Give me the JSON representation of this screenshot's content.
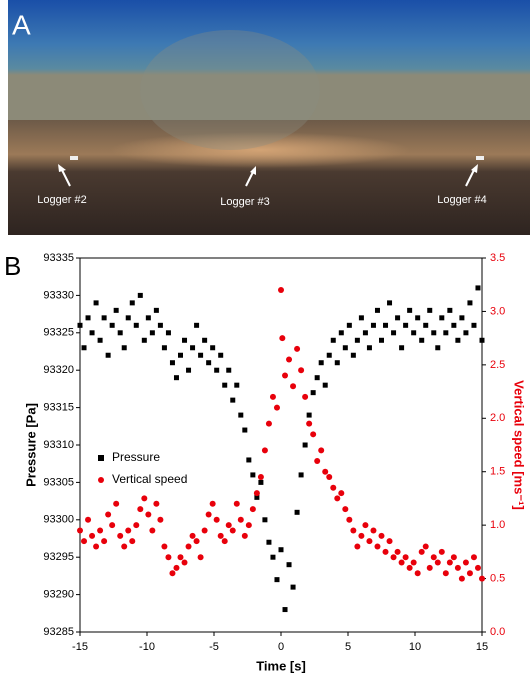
{
  "panel_labels": [
    "A",
    "B"
  ],
  "photo": {
    "labels": [
      "Logger #2",
      "Logger #3",
      "Logger #4"
    ]
  },
  "chart_data": {
    "type": "scatter",
    "xlabel": "Time [s]",
    "ylabel": "Pressure [Pa]",
    "y2label": "Vertical speed [ms⁻¹]",
    "xlim": [
      -15,
      15
    ],
    "xticks": [
      -15,
      -10,
      -5,
      0,
      5,
      10,
      15
    ],
    "ylim": [
      93285,
      93335
    ],
    "yticks": [
      93285,
      93290,
      93295,
      93300,
      93305,
      93310,
      93315,
      93320,
      93325,
      93330,
      93335
    ],
    "y2lim": [
      0,
      3.5
    ],
    "y2ticks": [
      {
        "value": 0,
        "label": "0.0"
      },
      0.5,
      {
        "value": 1,
        "label": "1.0"
      },
      1.5,
      {
        "value": 2,
        "label": "2.0"
      },
      2.5,
      {
        "value": 3,
        "label": "3.0"
      },
      3.5
    ],
    "legend": "center left",
    "grid": false,
    "series": [
      {
        "name": "Pressure",
        "color": "#000000",
        "marker": "square",
        "x": [
          -15,
          -14.7,
          -14.4,
          -14.1,
          -13.8,
          -13.5,
          -13.2,
          -12.9,
          -12.6,
          -12.3,
          -12,
          -11.7,
          -11.4,
          -11.1,
          -10.8,
          -10.5,
          -10.2,
          -9.9,
          -9.6,
          -9.3,
          -9,
          -8.7,
          -8.4,
          -8.1,
          -7.8,
          -7.5,
          -7.2,
          -6.9,
          -6.6,
          -6.3,
          -6,
          -5.7,
          -5.4,
          -5.1,
          -4.8,
          -4.5,
          -4.2,
          -3.9,
          -3.6,
          -3.3,
          -3,
          -2.7,
          -2.4,
          -2.1,
          -1.8,
          -1.5,
          -1.2,
          -0.9,
          -0.6,
          -0.3,
          0,
          0.3,
          0.6,
          0.9,
          1.2,
          1.5,
          1.8,
          2.1,
          2.4,
          2.7,
          3,
          3.3,
          3.6,
          3.9,
          4.2,
          4.5,
          4.8,
          5.1,
          5.4,
          5.7,
          6,
          6.3,
          6.6,
          6.9,
          7.2,
          7.5,
          7.8,
          8.1,
          8.4,
          8.7,
          9,
          9.3,
          9.6,
          9.9,
          10.2,
          10.5,
          10.8,
          11.1,
          11.4,
          11.7,
          12,
          12.3,
          12.6,
          12.9,
          13.2,
          13.5,
          13.8,
          14.1,
          14.4,
          14.7,
          15
        ],
        "values": [
          93326,
          93323,
          93327,
          93325,
          93329,
          93324,
          93327,
          93322,
          93326,
          93328,
          93325,
          93323,
          93327,
          93329,
          93326,
          93330,
          93324,
          93327,
          93325,
          93328,
          93326,
          93323,
          93325,
          93321,
          93319,
          93322,
          93324,
          93320,
          93323,
          93326,
          93322,
          93324,
          93321,
          93323,
          93320,
          93322,
          93318,
          93320,
          93316,
          93318,
          93314,
          93312,
          93308,
          93306,
          93303,
          93305,
          93300,
          93297,
          93295,
          93292,
          93296,
          93288,
          93294,
          93291,
          93301,
          93306,
          93310,
          93314,
          93317,
          93319,
          93321,
          93318,
          93322,
          93324,
          93321,
          93325,
          93323,
          93326,
          93322,
          93324,
          93327,
          93325,
          93323,
          93326,
          93328,
          93324,
          93326,
          93329,
          93325,
          93327,
          93323,
          93326,
          93328,
          93325,
          93327,
          93324,
          93326,
          93328,
          93325,
          93323,
          93327,
          93325,
          93328,
          93326,
          93324,
          93327,
          93325,
          93329,
          93326,
          93331,
          93324
        ]
      },
      {
        "name": "Vertical speed",
        "color": "#e8000b",
        "marker": "circle",
        "axis": "y2",
        "x": [
          -15,
          -14.7,
          -14.4,
          -14.1,
          -13.8,
          -13.5,
          -13.2,
          -12.9,
          -12.6,
          -12.3,
          -12,
          -11.7,
          -11.4,
          -11.1,
          -10.8,
          -10.5,
          -10.2,
          -9.9,
          -9.6,
          -9.3,
          -9,
          -8.7,
          -8.4,
          -8.1,
          -7.8,
          -7.5,
          -7.2,
          -6.9,
          -6.6,
          -6.3,
          -6,
          -5.7,
          -5.4,
          -5.1,
          -4.8,
          -4.5,
          -4.2,
          -3.9,
          -3.6,
          -3.3,
          -3,
          -2.7,
          -2.4,
          -2.1,
          -1.8,
          -1.5,
          -1.2,
          -0.9,
          -0.6,
          -0.3,
          0,
          0.1,
          0.3,
          0.6,
          0.9,
          1.2,
          1.5,
          1.8,
          2.1,
          2.4,
          2.7,
          3,
          3.3,
          3.6,
          3.9,
          4.2,
          4.5,
          4.8,
          5.1,
          5.4,
          5.7,
          6,
          6.3,
          6.6,
          6.9,
          7.2,
          7.5,
          7.8,
          8.1,
          8.4,
          8.7,
          9,
          9.3,
          9.6,
          9.9,
          10.2,
          10.5,
          10.8,
          11.1,
          11.4,
          11.7,
          12,
          12.3,
          12.6,
          12.9,
          13.2,
          13.5,
          13.8,
          14.1,
          14.4,
          14.7,
          15
        ],
        "values": [
          0.95,
          0.85,
          1.05,
          0.9,
          0.8,
          0.95,
          0.85,
          1.1,
          1,
          1.2,
          0.9,
          0.8,
          0.95,
          0.85,
          1,
          1.15,
          1.25,
          1.1,
          0.95,
          1.2,
          1.05,
          0.8,
          0.7,
          0.55,
          0.6,
          0.7,
          0.65,
          0.8,
          0.9,
          0.85,
          0.7,
          0.95,
          1.1,
          1.2,
          1.05,
          0.9,
          0.85,
          1,
          0.95,
          1.2,
          1.05,
          0.9,
          1,
          1.15,
          1.3,
          1.45,
          1.7,
          1.95,
          2.2,
          2.1,
          3.2,
          2.75,
          2.4,
          2.55,
          2.3,
          2.65,
          2.45,
          2.2,
          1.95,
          1.85,
          1.6,
          1.7,
          1.5,
          1.45,
          1.35,
          1.25,
          1.3,
          1.15,
          1.05,
          0.95,
          0.8,
          0.9,
          1,
          0.85,
          0.95,
          0.8,
          0.9,
          0.75,
          0.85,
          0.7,
          0.75,
          0.65,
          0.7,
          0.6,
          0.65,
          0.55,
          0.75,
          0.8,
          0.6,
          0.7,
          0.65,
          0.75,
          0.55,
          0.65,
          0.7,
          0.6,
          0.5,
          0.65,
          0.55,
          0.7,
          0.6,
          0.5
        ]
      }
    ]
  }
}
